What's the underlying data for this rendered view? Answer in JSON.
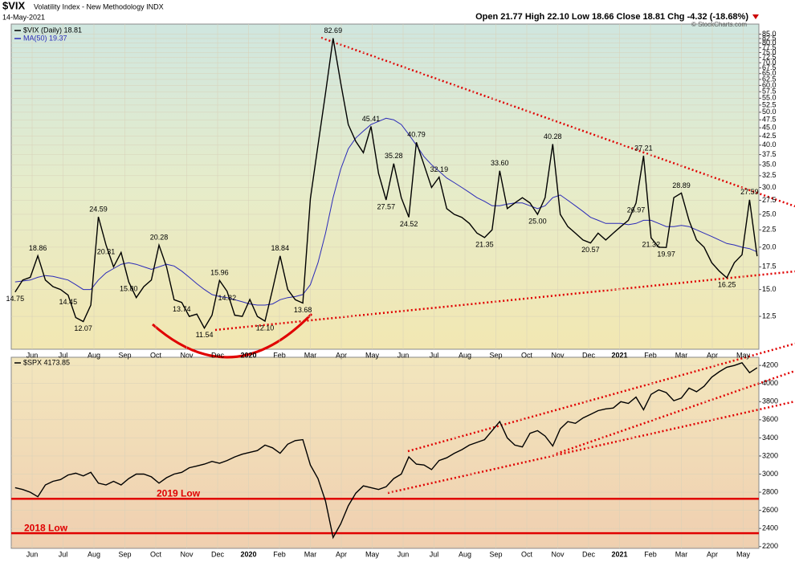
{
  "header": {
    "symbol": "$VIX",
    "name": "Volatility Index - New Methodology INDX",
    "date": "14-May-2021",
    "quote": "Open 21.77 High 22.10 Low 18.66 Close 18.81 Chg -4.32 (-18.68%)",
    "credit": "© StockCharts.com"
  },
  "chart_data": [
    {
      "type": "line",
      "log_scale": true,
      "grid": true,
      "xticks": [
        "Jun",
        "Jul",
        "Aug",
        "Sep",
        "Oct",
        "Nov",
        "Dec",
        "2020",
        "Feb",
        "Mar",
        "Apr",
        "May",
        "Jun",
        "Jul",
        "Aug",
        "Sep",
        "Oct",
        "Nov",
        "Dec",
        "2021",
        "Feb",
        "Mar",
        "Apr",
        "May"
      ],
      "ylim": [
        10,
        91
      ],
      "yticks": [
        12.5,
        {
          "value": 15,
          "label": "15.0"
        },
        17.5,
        {
          "value": 20,
          "label": "20.0"
        },
        22.5,
        {
          "value": 25,
          "label": "25.0"
        },
        27.5,
        {
          "value": 30,
          "label": "30.0"
        },
        32.5,
        {
          "value": 35,
          "label": "35.0"
        },
        37.5,
        {
          "value": 40,
          "label": "40.0"
        },
        42.5,
        {
          "value": 45,
          "label": "45.0"
        },
        47.5,
        {
          "value": 50,
          "label": "50.0"
        },
        52.5,
        {
          "value": 55,
          "label": "55.0"
        },
        57.5,
        {
          "value": 60,
          "label": "60.0"
        },
        62.5,
        {
          "value": 65,
          "label": "65.0"
        },
        67.5,
        {
          "value": 70,
          "label": "70.0"
        },
        72.5,
        {
          "value": 75,
          "label": "75.0"
        },
        77.5,
        {
          "value": 80,
          "label": "80.0"
        },
        82.5,
        {
          "value": 85,
          "label": "85.0"
        }
      ],
      "series": [
        {
          "name": "$VIX (Daily) 18.81",
          "color": "#000000",
          "values": [
            14.75,
            16.0,
            16.3,
            18.86,
            16.0,
            15.3,
            15.0,
            14.45,
            12.4,
            12.07,
            13.5,
            24.59,
            20.31,
            17.5,
            19.3,
            15.8,
            14.2,
            15.3,
            16.0,
            20.28,
            17.5,
            14.0,
            13.74,
            12.5,
            12.7,
            11.54,
            12.6,
            15.96,
            14.82,
            12.6,
            12.5,
            14.02,
            12.5,
            12.1,
            15.0,
            18.84,
            15.0,
            14.0,
            13.68,
            27.8,
            40.0,
            57.0,
            82.69,
            61.0,
            46.0,
            41.0,
            38.0,
            45.41,
            33.0,
            27.57,
            35.28,
            28.0,
            24.52,
            40.79,
            35.0,
            30.0,
            32.19,
            26.0,
            25.0,
            24.5,
            23.5,
            22.0,
            21.35,
            22.5,
            33.6,
            26.0,
            27.0,
            28.0,
            27.0,
            25.0,
            28.0,
            40.28,
            25.0,
            23.0,
            22.0,
            21.0,
            20.57,
            22.0,
            21.0,
            22.0,
            23.0,
            24.0,
            26.97,
            37.21,
            21.32,
            20.0,
            19.97,
            28.0,
            28.89,
            24.0,
            21.0,
            20.0,
            18.0,
            17.0,
            16.25,
            18.0,
            19.0,
            27.59,
            18.81
          ],
          "value_labels": [
            "14.75",
            null,
            null,
            "18.86",
            null,
            null,
            null,
            "14.45",
            null,
            "12.07",
            null,
            "24.59",
            "20.31",
            null,
            null,
            "15.80",
            null,
            null,
            null,
            "20.28",
            null,
            null,
            "13.74",
            null,
            null,
            "11.54",
            null,
            "15.96",
            "14.82",
            null,
            null,
            null,
            null,
            "12.10",
            null,
            "18.84",
            null,
            null,
            "13.68",
            null,
            null,
            null,
            "82.69",
            null,
            null,
            null,
            null,
            "45.41",
            null,
            "27.57",
            "35.28",
            null,
            "24.52",
            "40.79",
            null,
            null,
            "32.19",
            null,
            null,
            null,
            null,
            null,
            "21.35",
            null,
            "33.60",
            null,
            null,
            null,
            null,
            "25.00",
            null,
            "40.28",
            null,
            null,
            null,
            null,
            "20.57",
            null,
            null,
            null,
            null,
            null,
            "26.97",
            "37.21",
            "21.32",
            null,
            "19.97",
            null,
            "28.89",
            null,
            null,
            null,
            null,
            null,
            "16.25",
            null,
            null,
            "27.59",
            null
          ]
        },
        {
          "name": "MA(50) 19.37",
          "color": "#2b2bb8",
          "values": [
            15.8,
            15.9,
            16.0,
            16.3,
            16.5,
            16.4,
            16.2,
            16.0,
            15.5,
            15.0,
            15.0,
            16.0,
            16.8,
            17.3,
            17.8,
            18.0,
            17.8,
            17.5,
            17.2,
            17.5,
            17.8,
            17.6,
            17.0,
            16.3,
            15.6,
            15.0,
            14.5,
            14.3,
            14.2,
            14.0,
            13.8,
            13.6,
            13.5,
            13.5,
            13.6,
            14.0,
            14.2,
            14.3,
            14.5,
            15.5,
            18.0,
            22.0,
            28.0,
            34.0,
            39.0,
            42.0,
            44.0,
            46.0,
            47.0,
            48.0,
            47.5,
            46.0,
            43.0,
            40.0,
            37.0,
            35.0,
            33.5,
            32.0,
            31.0,
            30.0,
            29.0,
            28.0,
            27.3,
            26.5,
            26.5,
            26.8,
            27.0,
            27.0,
            26.5,
            26.0,
            26.5,
            28.0,
            28.5,
            27.5,
            26.5,
            25.5,
            24.5,
            24.0,
            23.5,
            23.5,
            23.5,
            23.3,
            23.5,
            24.0,
            24.0,
            23.5,
            23.0,
            23.0,
            23.2,
            23.0,
            22.5,
            22.0,
            21.5,
            21.0,
            20.5,
            20.3,
            20.0,
            19.8,
            19.37
          ]
        }
      ]
    },
    {
      "type": "line",
      "grid": true,
      "xticks": [
        "Jun",
        "Jul",
        "Aug",
        "Sep",
        "Oct",
        "Nov",
        "Dec",
        "2020",
        "Feb",
        "Mar",
        "Apr",
        "May",
        "Jun",
        "Jul",
        "Aug",
        "Sep",
        "Oct",
        "Nov",
        "Dec",
        "2021",
        "Feb",
        "Mar",
        "Apr",
        "May"
      ],
      "ylim": [
        2180,
        4290
      ],
      "yticks": [
        2200,
        2400,
        2600,
        2800,
        3000,
        3200,
        3400,
        3600,
        3800,
        4000,
        4200
      ],
      "series": [
        {
          "name": "$SPX 4173.85",
          "color": "#000000",
          "values": [
            2850,
            2830,
            2800,
            2750,
            2880,
            2920,
            2940,
            2990,
            3010,
            2980,
            3020,
            2900,
            2880,
            2920,
            2880,
            2950,
            3000,
            3000,
            2970,
            2900,
            2960,
            3000,
            3020,
            3070,
            3090,
            3110,
            3140,
            3120,
            3150,
            3190,
            3220,
            3240,
            3260,
            3320,
            3290,
            3230,
            3330,
            3370,
            3380,
            3100,
            2950,
            2700,
            2300,
            2450,
            2650,
            2790,
            2870,
            2850,
            2830,
            2860,
            2950,
            3000,
            3190,
            3110,
            3100,
            3050,
            3150,
            3180,
            3230,
            3270,
            3320,
            3350,
            3380,
            3480,
            3580,
            3400,
            3320,
            3300,
            3450,
            3480,
            3420,
            3310,
            3500,
            3580,
            3560,
            3620,
            3660,
            3700,
            3720,
            3730,
            3800,
            3780,
            3850,
            3710,
            3880,
            3930,
            3900,
            3810,
            3840,
            3950,
            3910,
            3970,
            4070,
            4130,
            4180,
            4200,
            4230,
            4120,
            4173.85
          ]
        }
      ],
      "levels": [
        {
          "label": "2019 Low",
          "value": 2728,
          "color": "#e00000"
        },
        {
          "label": "2018 Low",
          "value": 2347,
          "color": "#e00000"
        }
      ]
    }
  ]
}
